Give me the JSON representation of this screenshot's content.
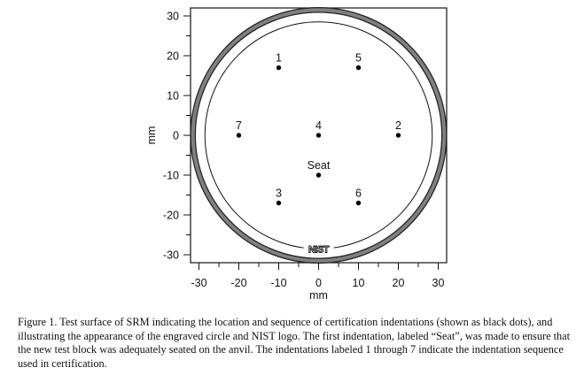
{
  "chart_data": {
    "type": "scatter",
    "xlabel": "mm",
    "ylabel": "mm",
    "xlim": [
      -32,
      32
    ],
    "ylim": [
      -32,
      32
    ],
    "xticks": [
      -30,
      -20,
      -10,
      0,
      10,
      20,
      30
    ],
    "yticks": [
      -30,
      -20,
      -10,
      0,
      10,
      20,
      30
    ],
    "grid": false,
    "points": [
      {
        "label": "1",
        "x": -10,
        "y": 17
      },
      {
        "label": "5",
        "x": 10,
        "y": 17
      },
      {
        "label": "7",
        "x": -20,
        "y": 0
      },
      {
        "label": "4",
        "x": 0,
        "y": 0
      },
      {
        "label": "2",
        "x": 20,
        "y": 0
      },
      {
        "label": "Seat",
        "x": 0,
        "y": -10
      },
      {
        "label": "3",
        "x": -10,
        "y": -17
      },
      {
        "label": "6",
        "x": 10,
        "y": -17
      }
    ],
    "circles": [
      {
        "name": "engraved-outer-ring",
        "radius": 31.5,
        "color": "#808080"
      },
      {
        "name": "inner-circle",
        "radius": 28.5
      }
    ],
    "logo": "NIST"
  },
  "caption": "Figure 1.  Test surface of SRM indicating the location and sequence of certification indentations (shown as black dots), and illustrating the appearance of the engraved circle and NIST logo.  The first indentation, labeled “Seat”, was made to ensure that the new test block was adequately seated on the anvil.  The indentations labeled 1 through 7 indicate the indentation sequence used in certification."
}
